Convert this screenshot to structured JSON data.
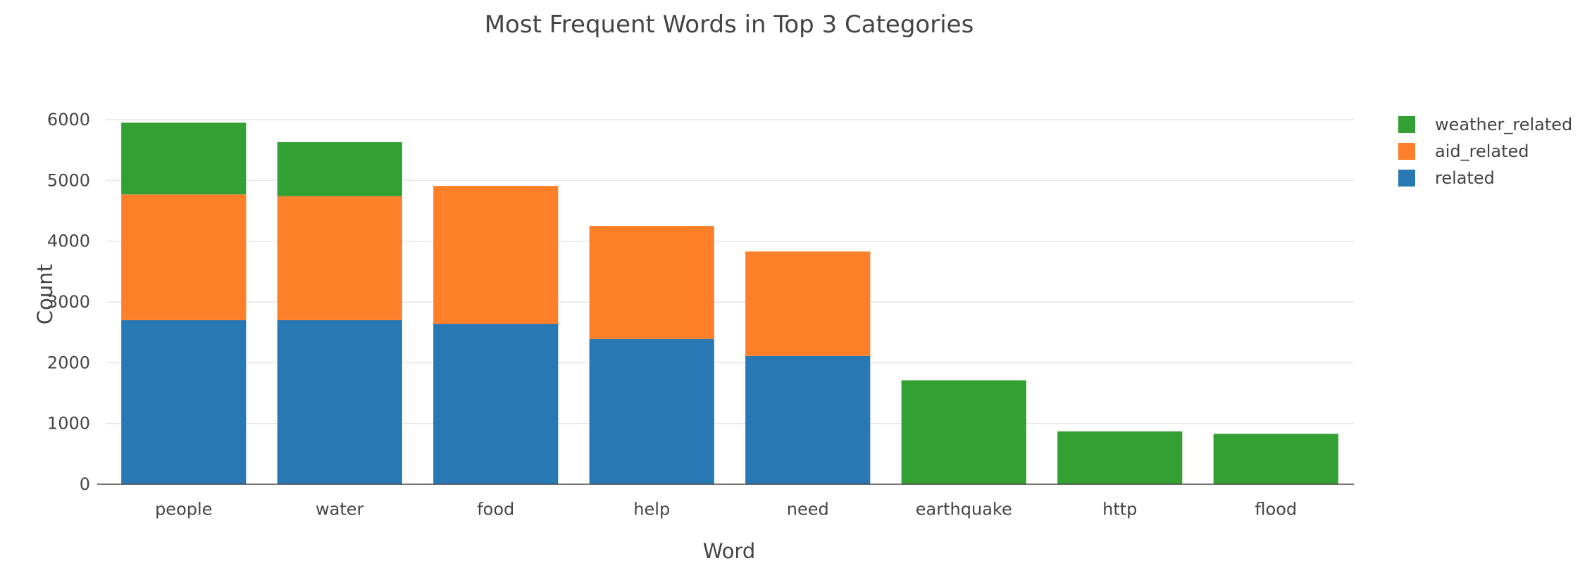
{
  "chart_data": {
    "type": "bar",
    "barmode": "stack",
    "title": "Most Frequent Words in Top 3 Categories",
    "xlabel": "Word",
    "ylabel": "Count",
    "categories": [
      "people",
      "water",
      "food",
      "help",
      "need",
      "earthquake",
      "http",
      "flood"
    ],
    "ylim": [
      0,
      6000
    ],
    "yticks": [
      0,
      1000,
      2000,
      3000,
      4000,
      5000,
      6000
    ],
    "grid": true,
    "legend_position": "top-right",
    "series": [
      {
        "name": "related",
        "color": "#2878b4",
        "values": [
          2700,
          2700,
          2640,
          2390,
          2110,
          0,
          0,
          0
        ]
      },
      {
        "name": "aid_related",
        "color": "#fe7f2a",
        "values": [
          2070,
          2040,
          2270,
          1860,
          1720,
          0,
          0,
          0
        ]
      },
      {
        "name": "weather_related",
        "color": "#33a033",
        "values": [
          1180,
          890,
          0,
          0,
          0,
          1710,
          870,
          830
        ]
      }
    ],
    "legend_order": [
      "weather_related",
      "aid_related",
      "related"
    ]
  }
}
